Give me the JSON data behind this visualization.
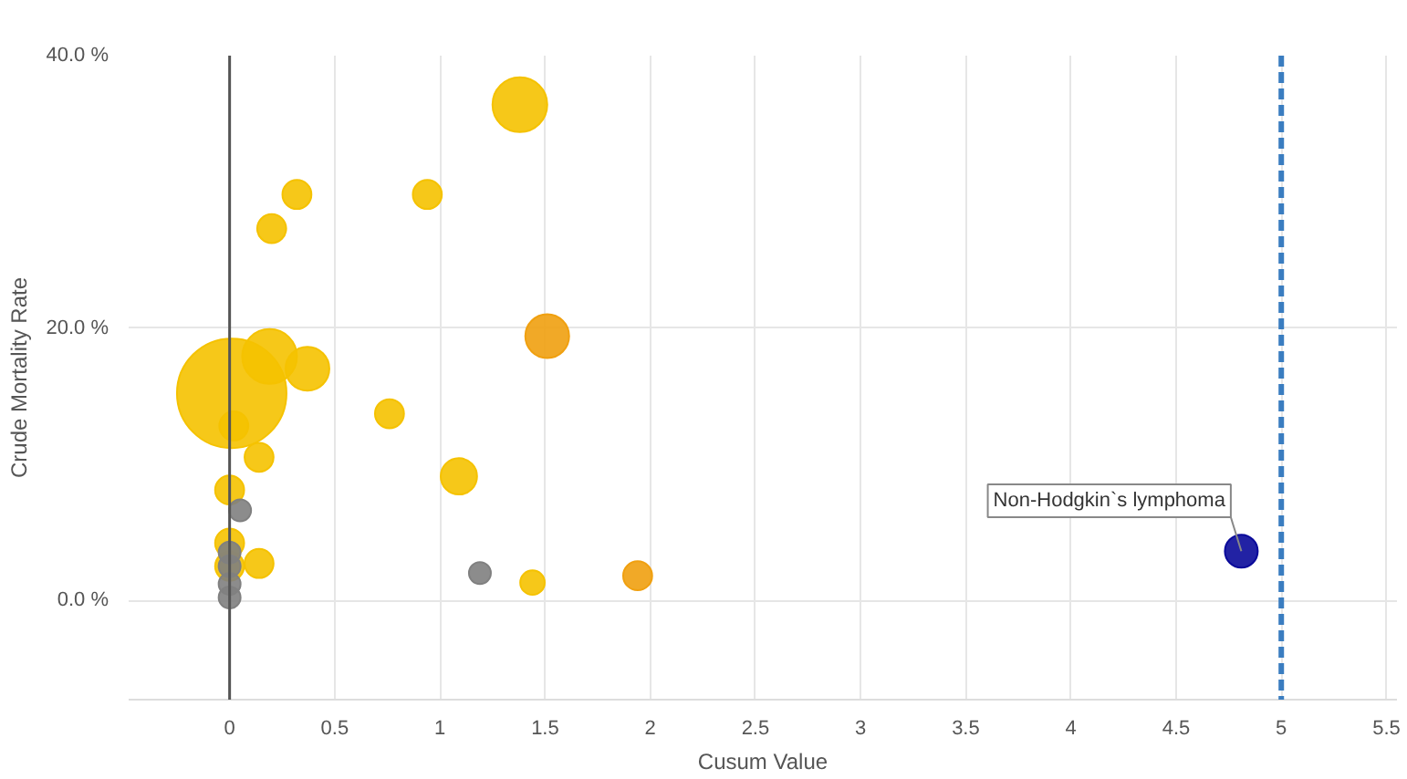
{
  "chart_data": {
    "type": "bubble",
    "xlabel": "Cusum Value",
    "ylabel": "Crude Mortality Rate",
    "xlim": [
      -0.48,
      5.55
    ],
    "xticks": [
      0,
      0.5,
      1,
      1.5,
      2,
      2.5,
      3,
      3.5,
      4,
      4.5,
      5,
      5.5
    ],
    "ylim": [
      -7.3,
      40
    ],
    "yticks": [
      {
        "value": 0,
        "label": "0.0 %"
      },
      {
        "value": 20,
        "label": "20.0 %"
      },
      {
        "value": 40,
        "label": "40.0 %"
      }
    ],
    "grid": true,
    "marker": "circle",
    "series": [
      {
        "color": "#f5c200",
        "x": [
          1.38,
          0.32,
          0.2,
          0.94,
          0.01,
          0.19,
          0.37,
          0.02,
          0.76,
          0.14,
          1.09,
          0.0,
          0.14,
          1.44,
          0.0,
          0.0
        ],
        "values": [
          36.4,
          29.8,
          27.3,
          29.8,
          15.2,
          17.9,
          17.0,
          12.8,
          13.7,
          10.5,
          9.1,
          8.1,
          2.7,
          1.3,
          4.2,
          2.5
        ],
        "sizes": [
          0.25,
          0.07,
          0.07,
          0.07,
          1,
          0.25,
          0.16,
          0.07,
          0.07,
          0.07,
          0.11,
          0.07,
          0.07,
          0.05,
          0.07,
          0.07
        ]
      },
      {
        "color": "#f0a010",
        "x": [
          1.51,
          1.94
        ],
        "values": [
          19.4,
          1.8
        ],
        "sizes": [
          0.16,
          0.07
        ]
      },
      {
        "color": "#808080",
        "x": [
          0.05,
          1.19,
          0.0,
          0.0,
          0.0,
          0.0
        ],
        "values": [
          6.6,
          2.0,
          3.5,
          2.5,
          1.2,
          0.2
        ],
        "sizes": [
          0.04,
          0.04,
          0.04,
          0.04,
          0.04,
          0.04
        ]
      },
      {
        "color": "#0a0a9a",
        "x": [
          4.81
        ],
        "values": [
          3.6
        ],
        "sizes": [
          0.09
        ]
      }
    ],
    "ref_lines": [
      {
        "axis": "x",
        "value": 0,
        "color": "#555555",
        "line_style": "solid"
      },
      {
        "axis": "x",
        "value": 5,
        "color": "#3a7dc0",
        "line_style": "dashed"
      }
    ],
    "annotations": [
      {
        "text": "Non-Hodgkin`s lymphoma",
        "x": 4.81,
        "y": 3.6
      }
    ]
  }
}
